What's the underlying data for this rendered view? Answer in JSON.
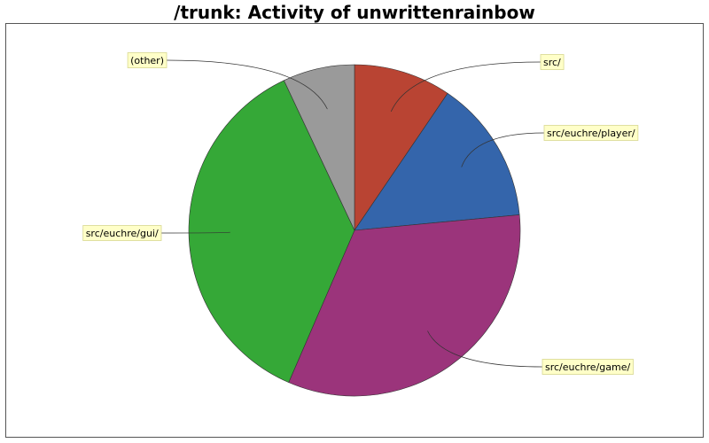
{
  "chart_data": {
    "type": "pie",
    "title": "/trunk: Activity of unwrittenrainbow",
    "slices": [
      {
        "label": "src/",
        "value": 9.5,
        "color": "#b94433"
      },
      {
        "label": "src/euchre/player/",
        "value": 14.0,
        "color": "#3465ab"
      },
      {
        "label": "src/euchre/game/",
        "value": 33.0,
        "color": "#9b347b"
      },
      {
        "label": "src/euchre/gui/",
        "value": 36.5,
        "color": "#35a837"
      },
      {
        "label": "(other)",
        "value": 7.0,
        "color": "#9a9a9a"
      }
    ]
  }
}
